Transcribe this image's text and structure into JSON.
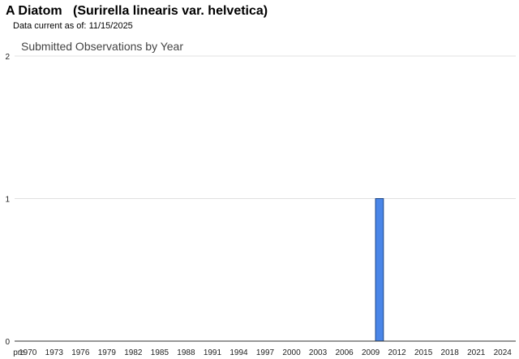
{
  "header": {
    "species_common": "A Diatom",
    "species_scientific": "(Surirella linearis var. helvetica)",
    "data_current_label": "Data current as of:",
    "data_current_date": "11/15/2025"
  },
  "colors": {
    "bar_fill": "#4a86e8",
    "bar_stroke": "#1c4587",
    "gridline": "#e0e0e0",
    "baseline": "#333333"
  },
  "chart_data": {
    "type": "bar",
    "title": "Submitted Observations by Year",
    "xlabel": "",
    "ylabel": "",
    "ylim": [
      0,
      2
    ],
    "yticks": [
      0,
      1,
      2
    ],
    "grid": true,
    "legend": "none",
    "x_tick_labels": [
      "pre",
      "1970",
      "1973",
      "1976",
      "1979",
      "1982",
      "1985",
      "1988",
      "1991",
      "1994",
      "1997",
      "2000",
      "2003",
      "2006",
      "2009",
      "2012",
      "2015",
      "2018",
      "2021",
      "2024"
    ],
    "categories": [
      "pre",
      "1970",
      "1971",
      "1972",
      "1973",
      "1974",
      "1975",
      "1976",
      "1977",
      "1978",
      "1979",
      "1980",
      "1981",
      "1982",
      "1983",
      "1984",
      "1985",
      "1986",
      "1987",
      "1988",
      "1989",
      "1990",
      "1991",
      "1992",
      "1993",
      "1994",
      "1995",
      "1996",
      "1997",
      "1998",
      "1999",
      "2000",
      "2001",
      "2002",
      "2003",
      "2004",
      "2005",
      "2006",
      "2007",
      "2008",
      "2009",
      "2010",
      "2011",
      "2012",
      "2013",
      "2014",
      "2015",
      "2016",
      "2017",
      "2018",
      "2019",
      "2020",
      "2021",
      "2022",
      "2023",
      "2024",
      "2025"
    ],
    "values": [
      0,
      0,
      0,
      0,
      0,
      0,
      0,
      0,
      0,
      0,
      0,
      0,
      0,
      0,
      0,
      0,
      0,
      0,
      0,
      0,
      0,
      0,
      0,
      0,
      0,
      0,
      0,
      0,
      0,
      0,
      0,
      0,
      0,
      0,
      0,
      0,
      0,
      0,
      0,
      0,
      0,
      1,
      0,
      0,
      0,
      0,
      0,
      0,
      0,
      0,
      0,
      0,
      0,
      0,
      0,
      0,
      0
    ]
  }
}
